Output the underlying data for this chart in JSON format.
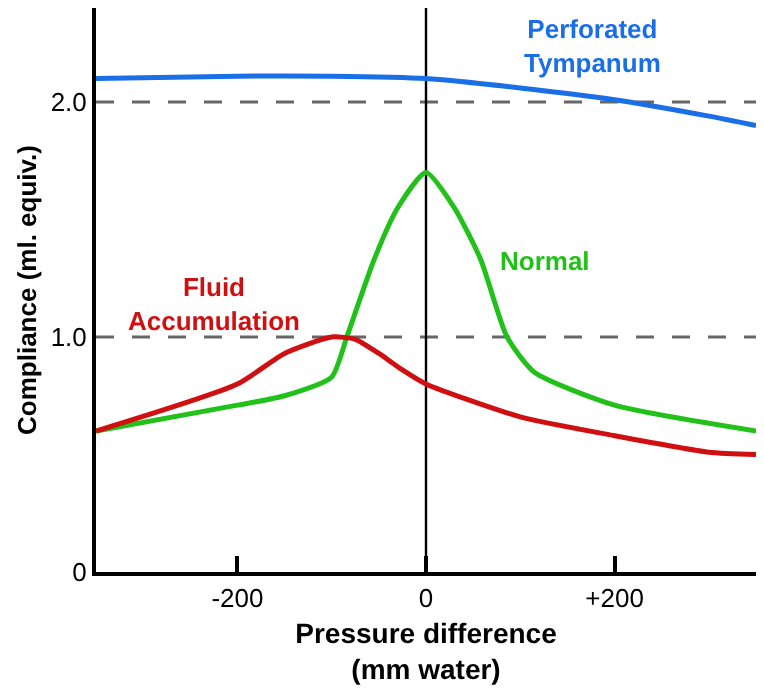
{
  "chart_data": {
    "type": "line",
    "xlabel": "Pressure difference\n(mm water)",
    "ylabel": "Compliance (ml. equiv.)",
    "xlim": [
      -350,
      350
    ],
    "xticks": [
      {
        "value": -200,
        "label": "-200"
      },
      0,
      {
        "value": 200,
        "label": "+200"
      }
    ],
    "ylim": [
      0,
      2.4
    ],
    "yticks": [
      0,
      {
        "value": 1,
        "label": "1.0"
      },
      {
        "value": 2,
        "label": "2.0"
      }
    ],
    "grid": false,
    "legend": false,
    "marker": "none",
    "line_style": "solid",
    "ref_lines": [
      {
        "axis": "y",
        "value": 1,
        "color": "#666666",
        "line_style": "dashed"
      },
      {
        "axis": "y",
        "value": 2,
        "color": "#666666",
        "line_style": "dashed"
      },
      {
        "axis": "x",
        "value": 0,
        "color": "#000000",
        "line_style": "solid"
      }
    ],
    "series": [
      {
        "name": "Perforated\nTympanum",
        "color": "#1a6ee6",
        "x": [
          -350,
          -200,
          -100,
          0,
          100,
          200,
          300,
          350
        ],
        "values": [
          2.1,
          2.11,
          2.11,
          2.1,
          2.06,
          2.01,
          1.94,
          1.9
        ]
      },
      {
        "name": "Normal",
        "color": "#22c11a",
        "x": [
          -350,
          -200,
          -150,
          -100,
          -84,
          -55,
          -30,
          0,
          30,
          58,
          86,
          115,
          200,
          350
        ],
        "values": [
          0.6,
          0.71,
          0.75,
          0.83,
          1.0,
          1.33,
          1.55,
          1.7,
          1.55,
          1.33,
          1.0,
          0.85,
          0.71,
          0.6
        ]
      },
      {
        "name": "Fluid\nAccumulation",
        "color": "#d01010",
        "x": [
          -350,
          -200,
          -150,
          -100,
          -75,
          -50,
          -25,
          0,
          100,
          200,
          300,
          350
        ],
        "values": [
          0.6,
          0.8,
          0.93,
          1.0,
          0.99,
          0.93,
          0.86,
          0.8,
          0.66,
          0.58,
          0.51,
          0.5
        ]
      }
    ]
  }
}
